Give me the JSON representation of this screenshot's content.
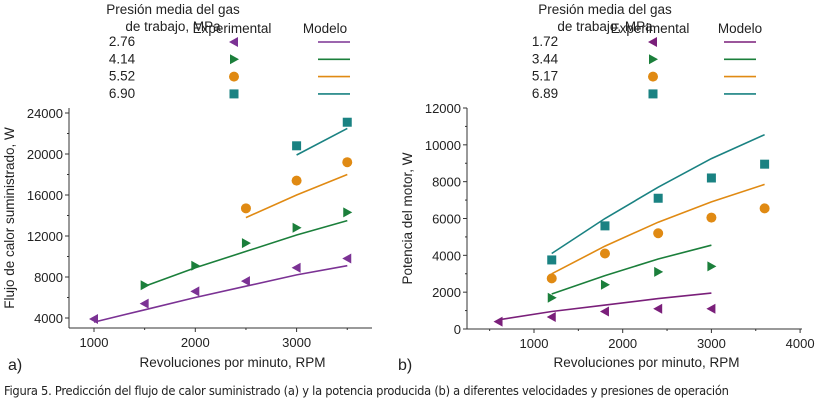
{
  "chart_data": [
    {
      "type": "line",
      "panel_label": "a)",
      "title": "",
      "xlabel": "Revoluciones por minuto, RPM",
      "ylabel": "Flujo de calor suministrado, W",
      "xlim": [
        750,
        3750
      ],
      "ylim": [
        3000,
        24000
      ],
      "xticks": [
        1000,
        2000,
        3000
      ],
      "yticks": [
        4000,
        8000,
        12000,
        16000,
        20000,
        24000
      ],
      "grid": false,
      "legend": {
        "placement": "top",
        "pressure_header": [
          "Presión media del gas",
          "de trabajo, MPa"
        ],
        "experimental_header": "Experimental",
        "model_header": "Modelo"
      },
      "series": [
        {
          "name": "2.76",
          "color": "#7b3294",
          "marker": "triangle-left",
          "experimental": {
            "x": [
              1000,
              1500,
              2000,
              2500,
              3000,
              3500
            ],
            "y": [
              3900,
              5400,
              6600,
              7600,
              8900,
              9800
            ]
          },
          "model": {
            "x": [
              1000,
              1500,
              2000,
              2500,
              3000,
              3500
            ],
            "y": [
              3600,
              4800,
              6000,
              7100,
              8200,
              9100
            ]
          }
        },
        {
          "name": "4.14",
          "color": "#1b7f3b",
          "marker": "triangle-right",
          "experimental": {
            "x": [
              1500,
              2000,
              2500,
              3000,
              3500
            ],
            "y": [
              7200,
              9100,
              11300,
              12800,
              14300
            ]
          },
          "model": {
            "x": [
              1500,
              2000,
              2500,
              3000,
              3500
            ],
            "y": [
              7100,
              8900,
              10500,
              12100,
              13500
            ]
          }
        },
        {
          "name": "5.52",
          "color": "#e08a13",
          "marker": "circle",
          "experimental": {
            "x": [
              2500,
              3000,
              3500
            ],
            "y": [
              14700,
              17400,
              19200
            ]
          },
          "model": {
            "x": [
              2500,
              3000,
              3500
            ],
            "y": [
              13800,
              16000,
              18000
            ]
          }
        },
        {
          "name": "6.90",
          "color": "#1a8282",
          "marker": "square",
          "experimental": {
            "x": [
              3000,
              3500
            ],
            "y": [
              20800,
              23100
            ]
          },
          "model": {
            "x": [
              3000,
              3500
            ],
            "y": [
              19900,
              22500
            ]
          }
        }
      ]
    },
    {
      "type": "line",
      "panel_label": "b)",
      "title": "",
      "xlabel": "Revoluciones por minuto, RPM",
      "ylabel": "Potencia del motor, W",
      "xlim": [
        250,
        4000
      ],
      "ylim": [
        0,
        12000
      ],
      "xticks": [
        1000,
        2000,
        3000,
        4000
      ],
      "yticks": [
        0,
        2000,
        4000,
        6000,
        8000,
        10000,
        12000
      ],
      "grid": false,
      "legend": {
        "placement": "top",
        "pressure_header": [
          "Presión media del gas",
          "de trabajo, MPa"
        ],
        "experimental_header": "Experimental",
        "model_header": "Modelo"
      },
      "series": [
        {
          "name": "1.72",
          "color": "#7a1f7a",
          "marker": "triangle-left",
          "experimental": {
            "x": [
              600,
              1200,
              1800,
              2400,
              3000
            ],
            "y": [
              400,
              650,
              950,
              1100,
              1100
            ]
          },
          "model": {
            "x": [
              600,
              1200,
              1800,
              2400,
              3000
            ],
            "y": [
              500,
              950,
              1300,
              1650,
              1950
            ]
          }
        },
        {
          "name": "3.44",
          "color": "#1b7f3b",
          "marker": "triangle-right",
          "experimental": {
            "x": [
              1200,
              1800,
              2400,
              3000
            ],
            "y": [
              1700,
              2400,
              3100,
              3400
            ]
          },
          "model": {
            "x": [
              1200,
              1800,
              2400,
              3000
            ],
            "y": [
              1900,
              2900,
              3800,
              4550
            ]
          }
        },
        {
          "name": "5.17",
          "color": "#e08a13",
          "marker": "circle",
          "experimental": {
            "x": [
              1200,
              1800,
              2400,
              3000,
              3600
            ],
            "y": [
              2750,
              4100,
              5200,
              6050,
              6550
            ]
          },
          "model": {
            "x": [
              1200,
              1800,
              2400,
              3000,
              3600
            ],
            "y": [
              3000,
              4500,
              5800,
              6900,
              7850
            ]
          }
        },
        {
          "name": "6.89",
          "color": "#1a8282",
          "marker": "square",
          "experimental": {
            "x": [
              1200,
              1800,
              2400,
              3000,
              3600
            ],
            "y": [
              3750,
              5600,
              7100,
              8200,
              8950
            ]
          },
          "model": {
            "x": [
              1200,
              1800,
              2400,
              3000,
              3600
            ],
            "y": [
              4100,
              6000,
              7700,
              9250,
              10550
            ]
          }
        }
      ]
    }
  ],
  "caption": "Figura 5. Predicción del flujo de calor suministrado (a) y la potencia producida (b) a diferentes velocidades y presiones de operación"
}
